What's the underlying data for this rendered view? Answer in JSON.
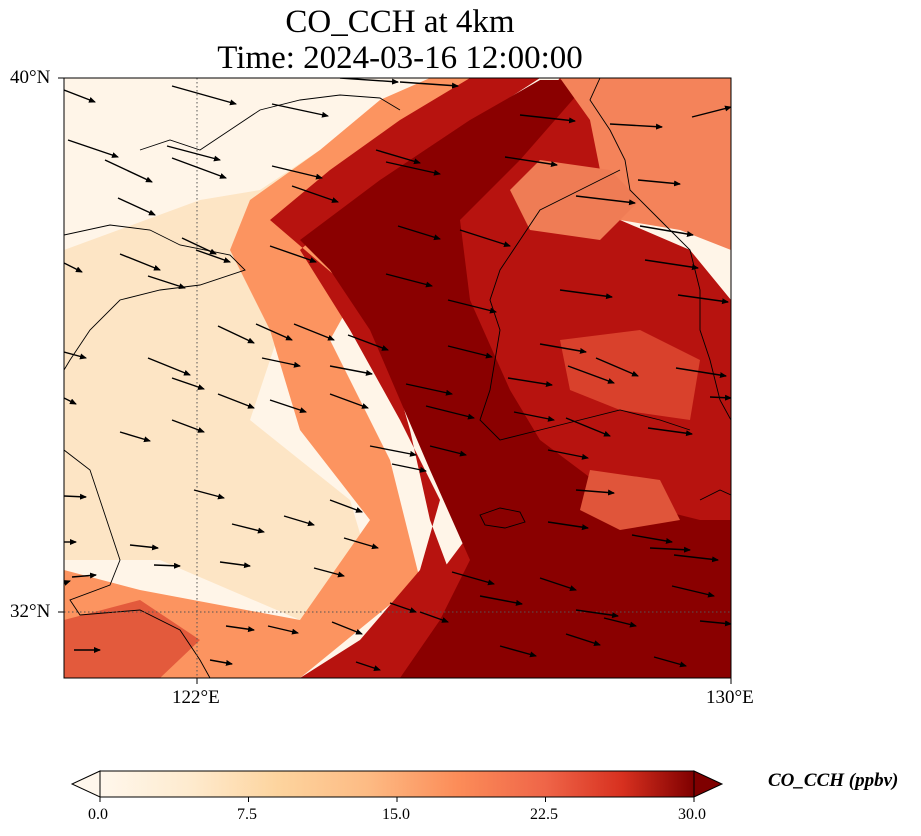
{
  "title": {
    "line1": "CO_CCH at 4km",
    "line2": "Time: 2024-03-16 12:00:00"
  },
  "axes": {
    "lat_ticks": [
      "40°N",
      "32°N"
    ],
    "lon_ticks": [
      "122°E",
      "130°E"
    ],
    "lat_range": [
      31,
      40
    ],
    "lon_range": [
      120,
      130
    ],
    "gridlines": "dotted at 122°E and 32°N"
  },
  "colorbar": {
    "label": "CO_CCH (ppbv)",
    "ticks": [
      "0.0",
      "7.5",
      "15.0",
      "22.5",
      "30.0"
    ],
    "min": 0,
    "max": 30,
    "colormap": "OrRd",
    "extend": "both"
  },
  "chart_data": {
    "type": "heatmap",
    "variable": "CO_CCH",
    "units": "ppbv",
    "level": "4km",
    "time": "2024-03-16 12:00:00",
    "lon_range": [
      120,
      130
    ],
    "lat_range": [
      31,
      40
    ],
    "vmin": 0,
    "vmax": 30,
    "pattern": "high concentrations (>30 ppbv) in a diagonal band from SW to NE across Yellow Sea and Korea; low values (0-8) over eastern China in the northwest",
    "wind_vectors": "predominantly westerly to west-northwesterly",
    "colors": [
      "#fff7ec",
      "#fdd49e",
      "#fc8d59",
      "#d7301f",
      "#7f0000"
    ]
  }
}
